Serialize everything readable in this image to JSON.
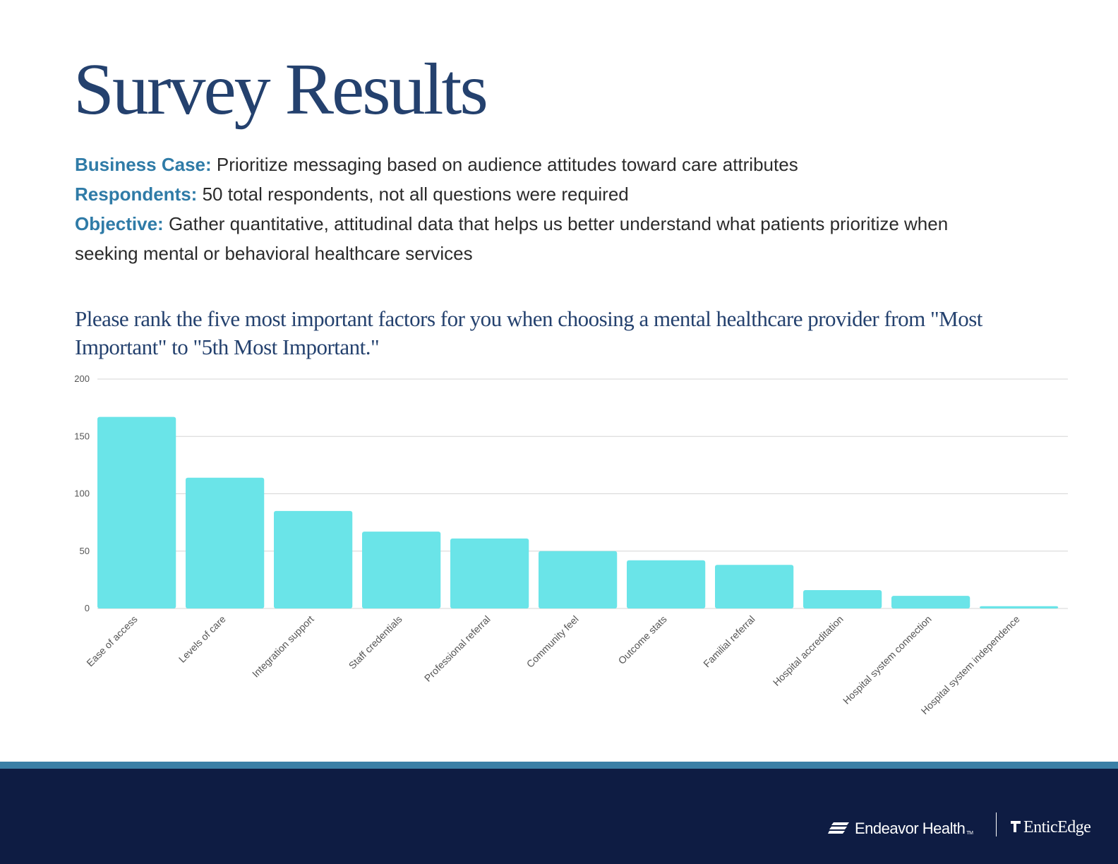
{
  "header": {
    "title": "Survey Results"
  },
  "info": {
    "business_case": {
      "label": "Business Case:",
      "text": "Prioritize messaging based on audience attitudes toward care attributes"
    },
    "respondents": {
      "label": "Respondents:",
      "text": "50 total respondents, not all questions were required"
    },
    "objective": {
      "label": "Objective:",
      "text": "Gather quantitative, attitudinal data that helps us better understand what patients prioritize when seeking mental or behavioral healthcare services"
    }
  },
  "question": "Please rank the five most important factors for you when choosing a mental healthcare provider from \"Most Important\" to \"5th Most Important.\"",
  "chart_data": {
    "type": "bar",
    "title": "",
    "xlabel": "",
    "ylabel": "",
    "ylim": [
      0,
      200
    ],
    "yticks": [
      0,
      50,
      100,
      150,
      200
    ],
    "grid": true,
    "legend": "none",
    "bar_color": "#6ae4e8",
    "categories": [
      "Ease of access",
      "Levels of care",
      "Integration support",
      "Staff credentials",
      "Professional referral",
      "Community feel",
      "Outcome stats",
      "Familial referral",
      "Hospital accreditation",
      "Hospital system connection",
      "Hospital system independence"
    ],
    "values": [
      167,
      114,
      85,
      67,
      61,
      50,
      42,
      38,
      16,
      11,
      2
    ]
  },
  "footer": {
    "brand_primary": "Endeavor Health",
    "brand_primary_mark": "TM",
    "brand_secondary": "EnticEdge",
    "background_color": "#0e1c43",
    "stripe_color": "#3a7fa6",
    "primary_logo_icon": "endeavor-stripes-icon",
    "secondary_logo_icon": "enticedge-flag-icon"
  }
}
